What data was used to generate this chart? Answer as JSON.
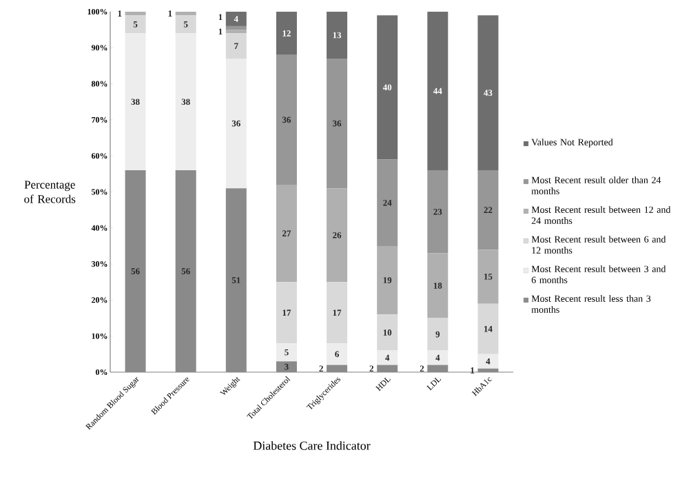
{
  "chart_data": {
    "type": "bar",
    "stacked": true,
    "legend": "right",
    "xlabel": "Diabetes Care Indicator",
    "ylabel": "Percentage of Records",
    "categories": [
      "Random Blood Sugar",
      "Blood Pressure",
      "Weight",
      "Total Cholesterol",
      "Triglycerides",
      "HDL",
      "LDL",
      "HbA1c"
    ],
    "ylim": [
      0,
      100
    ],
    "yticks": [
      {
        "value": 0,
        "label": "0%"
      },
      {
        "value": 10,
        "label": "10%"
      },
      {
        "value": 20,
        "label": "20%"
      },
      {
        "value": 30,
        "label": "30%"
      },
      {
        "value": 40,
        "label": "40%"
      },
      {
        "value": 50,
        "label": "50%"
      },
      {
        "value": 60,
        "label": "60%"
      },
      {
        "value": 70,
        "label": "70%"
      },
      {
        "value": 80,
        "label": "80%"
      },
      {
        "value": 90,
        "label": "90%"
      },
      {
        "value": 100,
        "label": "100%"
      }
    ],
    "series": [
      {
        "name": "Most Recent result  less than 3 months",
        "color": "#8a8a8a",
        "values": [
          56,
          56,
          51,
          3,
          2,
          2,
          2,
          1
        ],
        "value_labels": [
          "56",
          "56",
          "51",
          "3",
          "2",
          "2",
          "2",
          "1"
        ]
      },
      {
        "name": "Most Recent  result between 3 and 6 months",
        "color": "#ededed",
        "values": [
          38,
          38,
          36,
          5,
          6,
          4,
          4,
          4
        ],
        "value_labels": [
          "38",
          "38",
          "36",
          "5",
          "6",
          "4",
          "4",
          "4"
        ]
      },
      {
        "name": "Most Recent  result between 6 and 12 months",
        "color": "#d9d9d9",
        "values": [
          5,
          5,
          7,
          17,
          17,
          10,
          9,
          14
        ],
        "value_labels": [
          "5",
          "5",
          "7",
          "17",
          "17",
          "10",
          "9",
          "14"
        ]
      },
      {
        "name": "Most Recent  result between 12 and 24 months",
        "color": "#b0b0b0",
        "values": [
          1,
          1,
          1,
          27,
          26,
          19,
          18,
          15
        ],
        "value_labels": [
          "1",
          "1",
          "1",
          "27",
          "26",
          "19",
          "18",
          "15"
        ]
      },
      {
        "name": "Most Recent  result older than 24 months",
        "color": "#979797",
        "values": [
          0,
          0,
          1,
          36,
          36,
          24,
          23,
          22
        ],
        "value_labels": [
          null,
          null,
          "1",
          "36",
          "36",
          "24",
          "23",
          "22"
        ]
      },
      {
        "name": "Values Not Reported",
        "color": "#6e6e6e",
        "values": [
          0,
          0,
          4,
          12,
          13,
          40,
          44,
          43
        ],
        "value_labels": [
          null,
          null,
          "4",
          "12",
          "13",
          "40",
          "44",
          "43"
        ]
      }
    ]
  }
}
